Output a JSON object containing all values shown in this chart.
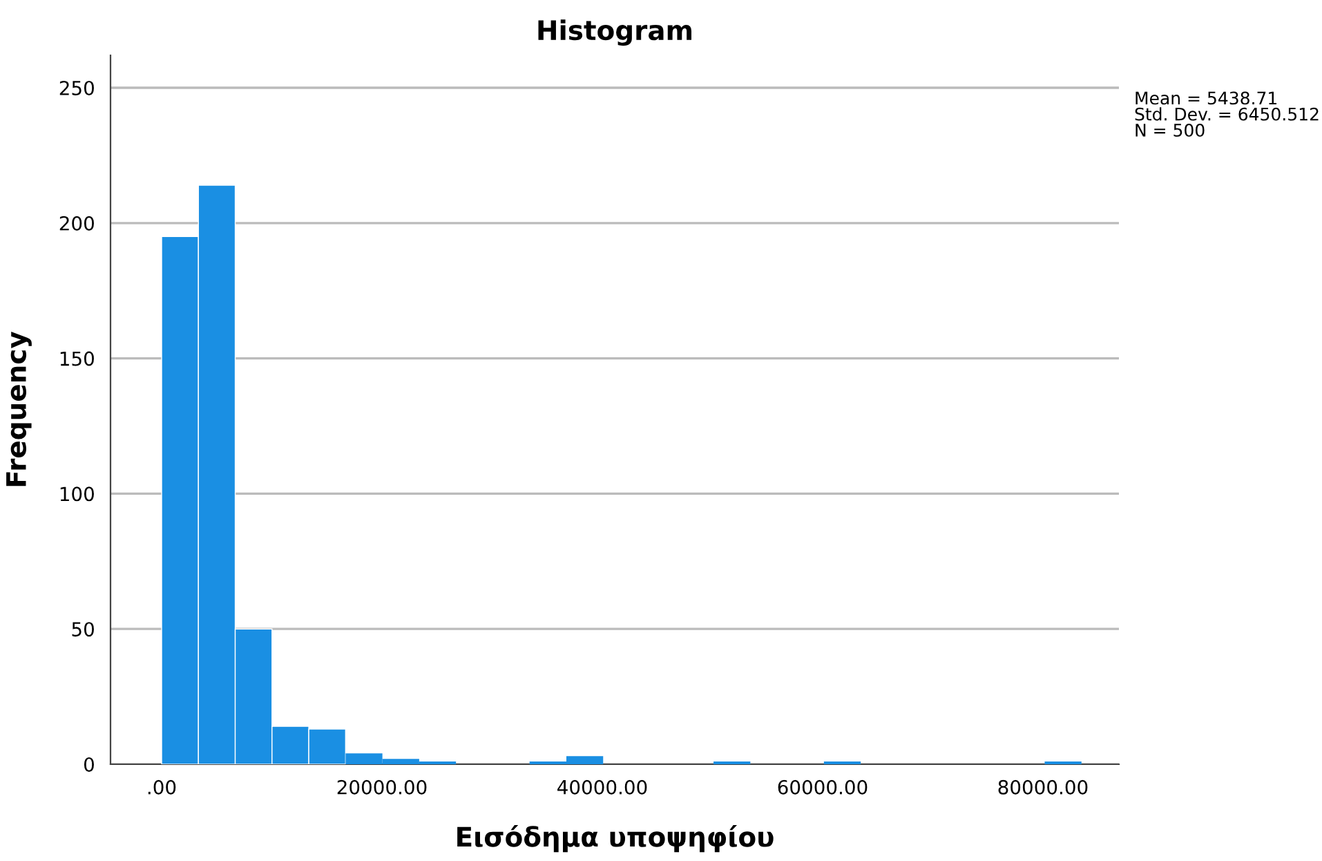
{
  "chart_data": {
    "type": "histogram",
    "title": "Histogram",
    "xlabel": "Εισόδημα υποψηφίου",
    "ylabel": "Frequency",
    "bins": [
      0,
      3340,
      6680,
      10020,
      13360,
      16700,
      20040,
      23380,
      26720,
      30060,
      33400,
      36740,
      40080,
      43420,
      46760,
      50100,
      53440,
      56780,
      60120,
      63460,
      66800,
      70140,
      73480,
      76820,
      80160,
      83500
    ],
    "values": [
      195,
      214,
      50,
      14,
      13,
      4,
      2,
      1,
      0,
      0,
      1,
      3,
      0,
      0,
      0,
      1,
      0,
      0,
      1,
      0,
      0,
      0,
      0,
      0,
      1
    ],
    "color": "#1a8fe3",
    "xlim": [
      -4640,
      86900
    ],
    "ylim": [
      0,
      262
    ],
    "xticks": [
      {
        "value": 0,
        "label": ".00"
      },
      {
        "value": 20000,
        "label": "20000.00"
      },
      {
        "value": 40000,
        "label": "40000.00"
      },
      {
        "value": 60000,
        "label": "60000.00"
      },
      {
        "value": 80000,
        "label": "80000.00"
      }
    ],
    "yticks": [
      0,
      50,
      100,
      150,
      200,
      250
    ],
    "grid": "y",
    "annotations": [
      "Mean = 5438.71\nStd. Dev. = 6450.512\nN = 500"
    ]
  }
}
